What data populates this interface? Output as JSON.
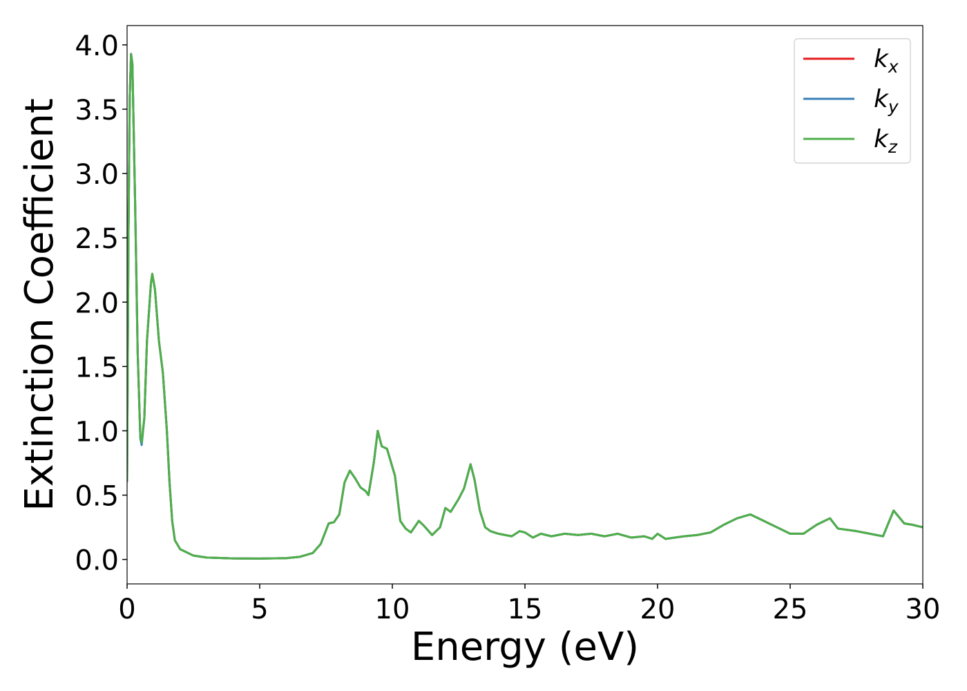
{
  "chart_data": {
    "type": "line",
    "xlabel": "Energy (eV)",
    "ylabel": "Extinction Coefficient",
    "x": [
      0.0,
      0.05,
      0.1,
      0.15,
      0.2,
      0.3,
      0.4,
      0.5,
      0.55,
      0.65,
      0.75,
      0.9,
      0.95,
      1.05,
      1.2,
      1.35,
      1.5,
      1.6,
      1.7,
      1.8,
      2.0,
      2.5,
      3,
      4,
      5,
      6,
      6.5,
      7,
      7.3,
      7.6,
      7.8,
      8.0,
      8.2,
      8.4,
      8.6,
      8.8,
      9.0,
      9.1,
      9.3,
      9.45,
      9.6,
      9.8,
      10.0,
      10.1,
      10.3,
      10.5,
      10.7,
      11.0,
      11.2,
      11.5,
      11.8,
      12.0,
      12.2,
      12.5,
      12.7,
      12.95,
      13.1,
      13.3,
      13.5,
      13.7,
      14.0,
      14.5,
      14.8,
      15.0,
      15.3,
      15.6,
      16,
      16.5,
      17,
      17.5,
      18,
      18.5,
      19,
      19.5,
      19.8,
      20,
      20.3,
      21,
      21.5,
      22,
      22.5,
      23,
      23.5,
      24,
      24.5,
      25,
      25.5,
      26,
      26.5,
      26.8,
      27.5,
      28,
      28.5,
      28.9,
      29.3,
      29.6,
      30
    ],
    "series": [
      {
        "name": "kx",
        "color": "#e41a1c",
        "values": [
          0.6,
          2.5,
          3.6,
          3.93,
          3.85,
          2.8,
          1.6,
          0.95,
          0.91,
          1.1,
          1.7,
          2.15,
          2.22,
          2.1,
          1.7,
          1.45,
          1.0,
          0.6,
          0.3,
          0.15,
          0.08,
          0.03,
          0.015,
          0.008,
          0.007,
          0.01,
          0.02,
          0.05,
          0.12,
          0.28,
          0.29,
          0.35,
          0.6,
          0.69,
          0.63,
          0.56,
          0.53,
          0.5,
          0.75,
          1.0,
          0.88,
          0.86,
          0.72,
          0.65,
          0.3,
          0.24,
          0.21,
          0.3,
          0.26,
          0.19,
          0.25,
          0.4,
          0.37,
          0.47,
          0.55,
          0.74,
          0.62,
          0.38,
          0.25,
          0.22,
          0.2,
          0.18,
          0.22,
          0.21,
          0.17,
          0.2,
          0.18,
          0.2,
          0.19,
          0.2,
          0.18,
          0.2,
          0.17,
          0.18,
          0.16,
          0.2,
          0.16,
          0.18,
          0.19,
          0.21,
          0.27,
          0.32,
          0.35,
          0.3,
          0.25,
          0.2,
          0.2,
          0.27,
          0.32,
          0.24,
          0.22,
          0.2,
          0.18,
          0.38,
          0.28,
          0.27,
          0.25
        ]
      },
      {
        "name": "ky",
        "color": "#377eb8",
        "values": [
          0.6,
          2.5,
          3.6,
          3.93,
          3.85,
          2.8,
          1.6,
          0.94,
          0.89,
          1.1,
          1.7,
          2.15,
          2.22,
          2.1,
          1.7,
          1.45,
          1.0,
          0.6,
          0.3,
          0.15,
          0.08,
          0.03,
          0.015,
          0.008,
          0.007,
          0.01,
          0.02,
          0.05,
          0.12,
          0.28,
          0.29,
          0.35,
          0.6,
          0.69,
          0.63,
          0.56,
          0.53,
          0.5,
          0.75,
          1.0,
          0.88,
          0.86,
          0.72,
          0.65,
          0.3,
          0.24,
          0.21,
          0.3,
          0.26,
          0.19,
          0.25,
          0.4,
          0.37,
          0.47,
          0.55,
          0.74,
          0.62,
          0.38,
          0.25,
          0.22,
          0.2,
          0.18,
          0.22,
          0.21,
          0.17,
          0.2,
          0.18,
          0.2,
          0.19,
          0.2,
          0.18,
          0.2,
          0.17,
          0.18,
          0.16,
          0.2,
          0.16,
          0.18,
          0.19,
          0.21,
          0.27,
          0.32,
          0.35,
          0.3,
          0.25,
          0.2,
          0.2,
          0.27,
          0.32,
          0.24,
          0.22,
          0.2,
          0.18,
          0.38,
          0.28,
          0.27,
          0.25
        ]
      },
      {
        "name": "kz",
        "color": "#4daf4a",
        "values": [
          0.6,
          2.5,
          3.6,
          3.93,
          3.85,
          2.8,
          1.6,
          0.95,
          0.91,
          1.1,
          1.7,
          2.15,
          2.22,
          2.1,
          1.7,
          1.45,
          1.0,
          0.6,
          0.3,
          0.15,
          0.08,
          0.03,
          0.015,
          0.008,
          0.007,
          0.01,
          0.02,
          0.05,
          0.12,
          0.28,
          0.29,
          0.35,
          0.6,
          0.69,
          0.63,
          0.56,
          0.53,
          0.5,
          0.75,
          1.0,
          0.88,
          0.86,
          0.72,
          0.65,
          0.3,
          0.24,
          0.21,
          0.3,
          0.26,
          0.19,
          0.25,
          0.4,
          0.37,
          0.47,
          0.55,
          0.74,
          0.62,
          0.38,
          0.25,
          0.22,
          0.2,
          0.18,
          0.22,
          0.21,
          0.17,
          0.2,
          0.18,
          0.2,
          0.19,
          0.2,
          0.18,
          0.2,
          0.17,
          0.18,
          0.16,
          0.2,
          0.16,
          0.18,
          0.19,
          0.21,
          0.27,
          0.32,
          0.35,
          0.3,
          0.25,
          0.2,
          0.2,
          0.27,
          0.32,
          0.24,
          0.22,
          0.2,
          0.18,
          0.38,
          0.28,
          0.27,
          0.25
        ]
      }
    ],
    "xlim": [
      0,
      30
    ],
    "xticks": [
      0,
      5,
      10,
      15,
      20,
      25,
      30
    ],
    "ylim": [
      -0.19,
      4.15
    ],
    "yticks": [
      {
        "value": 0,
        "label": "0.0"
      },
      0.5,
      {
        "value": 1,
        "label": "1.0"
      },
      1.5,
      {
        "value": 2,
        "label": "2.0"
      },
      2.5,
      {
        "value": 3,
        "label": "3.0"
      },
      3.5,
      {
        "value": 4,
        "label": "4.0"
      }
    ],
    "legend": "upper right",
    "grid": false
  }
}
